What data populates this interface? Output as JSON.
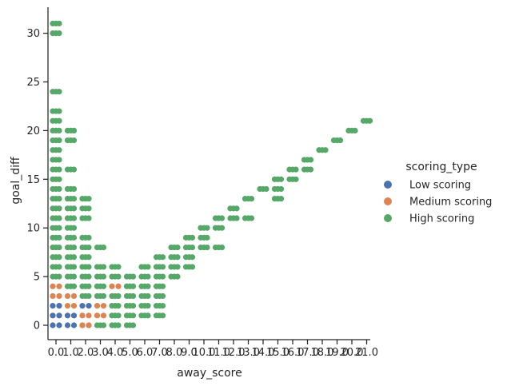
{
  "chart_data": {
    "type": "scatter",
    "title": "",
    "xlabel": "away_score",
    "ylabel": "goal_diff",
    "grid": false,
    "legend_position": "right",
    "categories": [
      "0.0",
      "1.0",
      "2.0",
      "3.0",
      "4.0",
      "5.0",
      "6.0",
      "7.0",
      "8.0",
      "9.0",
      "10.0",
      "11.0",
      "12.0",
      "13.0",
      "14.0",
      "15.0",
      "16.0",
      "17.0",
      "18.0",
      "19.0",
      "20.0",
      "21.0"
    ],
    "ylim": [
      -1.5,
      32.5
    ],
    "yticks": [
      "0",
      "5",
      "10",
      "15",
      "20",
      "25",
      "30"
    ],
    "legend": {
      "title": "scoring_type",
      "entries": [
        {
          "name": "Low scoring",
          "color": "#4c72b0"
        },
        {
          "name": "Medium scoring",
          "color": "#dd8452"
        },
        {
          "name": "High scoring",
          "color": "#55a868"
        }
      ]
    },
    "series": [
      {
        "name": "Low scoring",
        "color": "#4c72b0",
        "points": [
          [
            "0.0",
            0
          ],
          [
            "0.0",
            1
          ],
          [
            "0.0",
            2
          ],
          [
            "1.0",
            0
          ],
          [
            "1.0",
            1
          ],
          [
            "2.0",
            0
          ],
          [
            "2.0",
            2
          ]
        ]
      },
      {
        "name": "Medium scoring",
        "color": "#dd8452",
        "points": [
          [
            "0.0",
            3
          ],
          [
            "0.0",
            4
          ],
          [
            "1.0",
            2
          ],
          [
            "1.0",
            3
          ],
          [
            "2.0",
            0
          ],
          [
            "2.0",
            1
          ],
          [
            "3.0",
            1
          ],
          [
            "3.0",
            2
          ],
          [
            "4.0",
            4
          ]
        ]
      },
      {
        "name": "High scoring",
        "color": "#55a868",
        "points": [
          [
            "0.0",
            5
          ],
          [
            "0.0",
            6
          ],
          [
            "0.0",
            7
          ],
          [
            "0.0",
            8
          ],
          [
            "0.0",
            9
          ],
          [
            "0.0",
            10
          ],
          [
            "0.0",
            11
          ],
          [
            "0.0",
            12
          ],
          [
            "0.0",
            13
          ],
          [
            "0.0",
            14
          ],
          [
            "0.0",
            15
          ],
          [
            "0.0",
            16
          ],
          [
            "0.0",
            17
          ],
          [
            "0.0",
            18
          ],
          [
            "0.0",
            19
          ],
          [
            "0.0",
            20
          ],
          [
            "0.0",
            21
          ],
          [
            "0.0",
            22
          ],
          [
            "0.0",
            24
          ],
          [
            "0.0",
            30
          ],
          [
            "0.0",
            31
          ],
          [
            "1.0",
            4
          ],
          [
            "1.0",
            5
          ],
          [
            "1.0",
            6
          ],
          [
            "1.0",
            7
          ],
          [
            "1.0",
            8
          ],
          [
            "1.0",
            9
          ],
          [
            "1.0",
            10
          ],
          [
            "1.0",
            11
          ],
          [
            "1.0",
            12
          ],
          [
            "1.0",
            13
          ],
          [
            "1.0",
            14
          ],
          [
            "1.0",
            16
          ],
          [
            "1.0",
            19
          ],
          [
            "1.0",
            20
          ],
          [
            "2.0",
            3
          ],
          [
            "2.0",
            4
          ],
          [
            "2.0",
            5
          ],
          [
            "2.0",
            6
          ],
          [
            "2.0",
            7
          ],
          [
            "2.0",
            8
          ],
          [
            "2.0",
            9
          ],
          [
            "2.0",
            11
          ],
          [
            "2.0",
            12
          ],
          [
            "2.0",
            13
          ],
          [
            "3.0",
            0
          ],
          [
            "3.0",
            3
          ],
          [
            "3.0",
            4
          ],
          [
            "3.0",
            5
          ],
          [
            "3.0",
            6
          ],
          [
            "3.0",
            8
          ],
          [
            "4.0",
            0
          ],
          [
            "4.0",
            1
          ],
          [
            "4.0",
            2
          ],
          [
            "4.0",
            3
          ],
          [
            "4.0",
            5
          ],
          [
            "4.0",
            6
          ],
          [
            "5.0",
            0
          ],
          [
            "5.0",
            1
          ],
          [
            "5.0",
            2
          ],
          [
            "5.0",
            3
          ],
          [
            "5.0",
            4
          ],
          [
            "5.0",
            5
          ],
          [
            "6.0",
            1
          ],
          [
            "6.0",
            2
          ],
          [
            "6.0",
            3
          ],
          [
            "6.0",
            4
          ],
          [
            "6.0",
            5
          ],
          [
            "6.0",
            6
          ],
          [
            "7.0",
            1
          ],
          [
            "7.0",
            2
          ],
          [
            "7.0",
            3
          ],
          [
            "7.0",
            4
          ],
          [
            "7.0",
            5
          ],
          [
            "7.0",
            6
          ],
          [
            "7.0",
            7
          ],
          [
            "8.0",
            5
          ],
          [
            "8.0",
            6
          ],
          [
            "8.0",
            7
          ],
          [
            "8.0",
            8
          ],
          [
            "9.0",
            6
          ],
          [
            "9.0",
            7
          ],
          [
            "9.0",
            8
          ],
          [
            "9.0",
            9
          ],
          [
            "10.0",
            8
          ],
          [
            "10.0",
            9
          ],
          [
            "10.0",
            10
          ],
          [
            "11.0",
            8
          ],
          [
            "11.0",
            10
          ],
          [
            "11.0",
            11
          ],
          [
            "12.0",
            11
          ],
          [
            "12.0",
            12
          ],
          [
            "13.0",
            11
          ],
          [
            "13.0",
            13
          ],
          [
            "14.0",
            14
          ],
          [
            "15.0",
            13
          ],
          [
            "15.0",
            14
          ],
          [
            "15.0",
            15
          ],
          [
            "16.0",
            15
          ],
          [
            "16.0",
            16
          ],
          [
            "17.0",
            16
          ],
          [
            "17.0",
            17
          ],
          [
            "18.0",
            18
          ],
          [
            "19.0",
            19
          ],
          [
            "20.0",
            20
          ],
          [
            "21.0",
            21
          ]
        ]
      }
    ]
  }
}
